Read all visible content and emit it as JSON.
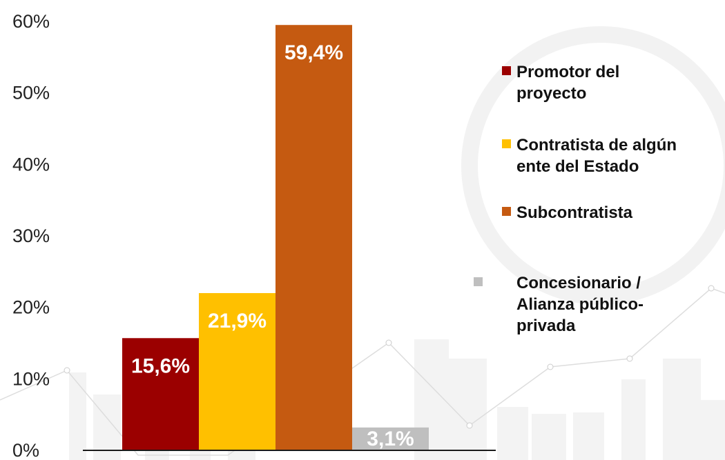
{
  "chart_data": {
    "type": "bar",
    "categories": [
      "Promotor del proyecto",
      "Contratista de algún ente del Estado",
      "Subcontratista",
      "Concesionario / Alianza público-privada"
    ],
    "values": [
      15.6,
      21.9,
      59.4,
      3.1
    ],
    "data_labels": [
      "15,6%",
      "21,9%",
      "59,4%",
      "3,1%"
    ],
    "colors": [
      "#9b0000",
      "#ffc000",
      "#c55a11",
      "#bfbfbf"
    ],
    "ylim": [
      0,
      60
    ],
    "y_ticks": [
      0,
      10,
      20,
      30,
      40,
      50,
      60
    ],
    "y_tick_labels": [
      "0%",
      "10%",
      "20%",
      "30%",
      "40%",
      "50%",
      "60%"
    ],
    "legend": {
      "position": "right",
      "items": [
        {
          "lines": [
            "Promotor del",
            "proyecto"
          ],
          "color": "#9b0000"
        },
        {
          "lines": [
            "Contratista de algún",
            "ente del Estado"
          ],
          "color": "#ffc000"
        },
        {
          "lines": [
            "Subcontratista"
          ],
          "color": "#c55a11"
        },
        {
          "lines": [
            "Concesionario /",
            "Alianza público-",
            "privada"
          ],
          "color": "#bfbfbf"
        }
      ]
    },
    "grid": false,
    "title": "",
    "xlabel": "",
    "ylabel": ""
  }
}
